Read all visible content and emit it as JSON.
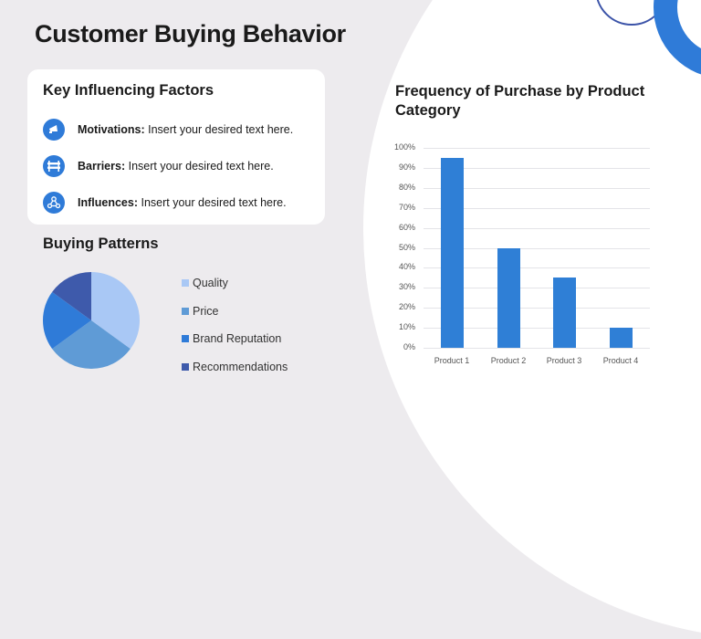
{
  "slide": {
    "title": "Customer Buying Behavior"
  },
  "key_factors": {
    "heading": "Key Influencing Factors",
    "items": [
      {
        "icon": "megaphone-icon",
        "label": "Motivations:",
        "text": "Insert your desired text here."
      },
      {
        "icon": "barrier-icon",
        "label": "Barriers:",
        "text": "Insert your desired text here."
      },
      {
        "icon": "network-icon",
        "label": "Influences:",
        "text": "Insert your desired text here."
      }
    ]
  },
  "buying_patterns": {
    "heading": "Buying Patterns",
    "legend": [
      {
        "label": "Quality",
        "color": "#a9c8f5"
      },
      {
        "label": "Price",
        "color": "#5f9bd6"
      },
      {
        "label": "Brand Reputation",
        "color": "#2f7bd8"
      },
      {
        "label": "Recommendations",
        "color": "#3e5aab"
      }
    ]
  },
  "frequency_chart": {
    "title": "Frequency of Purchase by Product Category",
    "y_ticks": [
      "100%",
      "90%",
      "80%",
      "70%",
      "60%",
      "50%",
      "40%",
      "30%",
      "20%",
      "10%",
      "0%"
    ],
    "categories": [
      "Product 1",
      "Product 2",
      "Product 3",
      "Product 4"
    ],
    "bar_color": "#2f7fd6"
  },
  "chart_data": [
    {
      "type": "pie",
      "title": "Buying Patterns",
      "categories": [
        "Quality",
        "Price",
        "Brand Reputation",
        "Recommendations"
      ],
      "values": [
        35,
        30,
        20,
        15
      ],
      "colors": [
        "#a9c8f5",
        "#5f9bd6",
        "#2f7bd8",
        "#3e5aab"
      ],
      "legend_position": "right"
    },
    {
      "type": "bar",
      "title": "Frequency of Purchase by Product Category",
      "categories": [
        "Product 1",
        "Product 2",
        "Product 3",
        "Product 4"
      ],
      "values": [
        95,
        50,
        35,
        10
      ],
      "xlabel": "",
      "ylabel": "",
      "ylim": [
        0,
        100
      ],
      "y_tick_format": "percent",
      "y_ticks": [
        0,
        10,
        20,
        30,
        40,
        50,
        60,
        70,
        80,
        90,
        100
      ],
      "grid": true,
      "legend": false
    }
  ]
}
